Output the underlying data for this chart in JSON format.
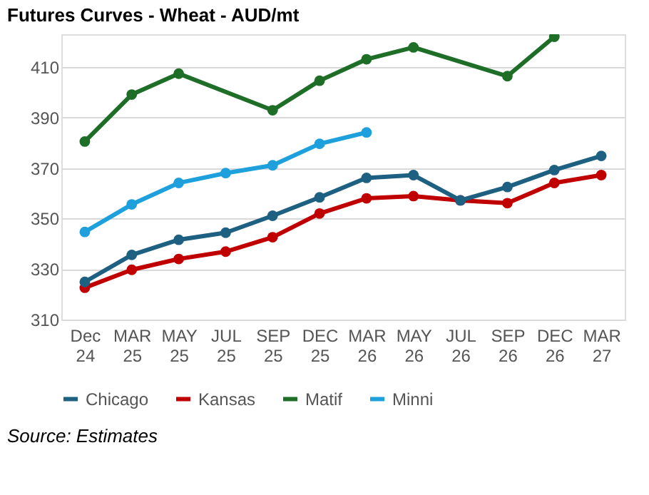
{
  "chart_data": {
    "type": "line",
    "title": "Futures Curves - Wheat - AUD/mt",
    "categories": [
      "Dec 24",
      "MAR 25",
      "MAY 25",
      "JUL 25",
      "SEP 25",
      "DEC 25",
      "MAR 26",
      "MAY 26",
      "JUL 26",
      "SEP 26",
      "DEC 26",
      "MAR 27"
    ],
    "series": [
      {
        "name": "Chicago",
        "color": "#1d6082",
        "values": [
          324.9,
          335.6,
          341.6,
          344.4,
          351.1,
          358.4,
          366.1,
          367.2,
          357.2,
          362.5,
          369.2,
          374.8
        ]
      },
      {
        "name": "Kansas",
        "color": "#c00000",
        "values": [
          322.6,
          329.7,
          334.0,
          336.9,
          342.6,
          352.0,
          358.0,
          358.9,
          357.2,
          356.1,
          364.1,
          367.2
        ]
      },
      {
        "name": "Matif",
        "color": "#1e6e28",
        "values": [
          380.5,
          399.1,
          407.4,
          null,
          392.9,
          404.6,
          413.1,
          417.8,
          null,
          406.4,
          422,
          null
        ]
      },
      {
        "name": "Minni",
        "color": "#1ea0dc",
        "values": [
          344.7,
          355.6,
          364.1,
          368.0,
          371.1,
          379.6,
          384.1,
          null,
          null,
          null,
          null,
          null
        ]
      }
    ],
    "ylim": [
      310,
      423
    ],
    "yticks": [
      310,
      330,
      350,
      370,
      390,
      410
    ],
    "grid": "y",
    "legend": "bottom",
    "marker": "circle",
    "line_style": "solid",
    "annotations": [
      "Source: Estimates"
    ]
  }
}
